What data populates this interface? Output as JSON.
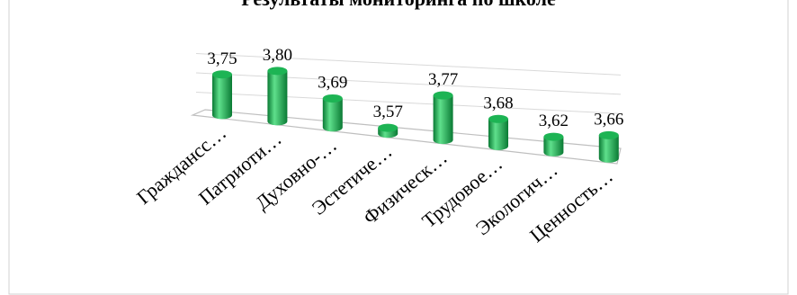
{
  "chart_data": {
    "type": "bar",
    "style": "3d-cylinder",
    "title": "Результаты мониторинга по школе",
    "categories": [
      "Граждансc…",
      "Патриоти…",
      "Духовно-…",
      "Эстетиче…",
      "Физическ…",
      "Трудовое…",
      "Экологич…",
      "Ценность…"
    ],
    "values": [
      3.75,
      3.8,
      3.69,
      3.57,
      3.77,
      3.68,
      3.62,
      3.66
    ],
    "value_labels": [
      "3,75",
      "3,80",
      "3,69",
      "3,57",
      "3,77",
      "3,68",
      "3,62",
      "3,66"
    ],
    "ylim": [
      3.4,
      3.85
    ],
    "grid": true,
    "legend": "none",
    "colors": {
      "bar_dark": "#0a7a34",
      "bar_mid": "#1db454",
      "bar_light": "#5fe08c",
      "gridline": "#d9d9d9",
      "floor": "#bfbfbf",
      "frame_border": "#d0d0d0"
    }
  }
}
